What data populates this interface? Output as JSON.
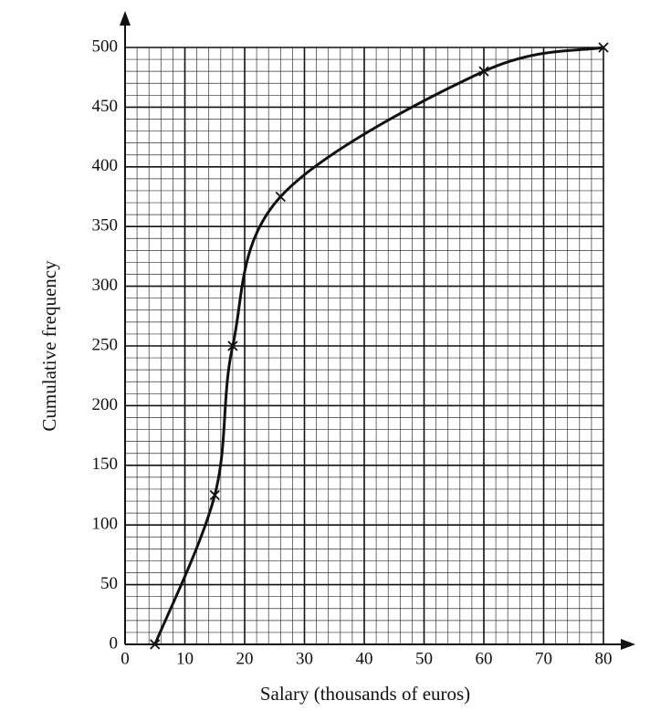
{
  "chart_data": {
    "type": "line",
    "x_label": "Salary (thousands of euros)",
    "y_label": "Cumulative frequency",
    "x": [
      5,
      15,
      18,
      26,
      60,
      80
    ],
    "values": [
      0,
      125,
      250,
      375,
      480,
      500
    ],
    "color": "#111111",
    "marker": "cross",
    "smooth": true,
    "xlim": [
      0,
      80
    ],
    "xticks": [
      0,
      10,
      20,
      30,
      40,
      50,
      60,
      70,
      80
    ],
    "ylim": [
      0,
      500
    ],
    "yticks": [
      0,
      50,
      100,
      150,
      200,
      250,
      300,
      350,
      400,
      450,
      500
    ],
    "grid": true,
    "minor_grid": 5
  }
}
